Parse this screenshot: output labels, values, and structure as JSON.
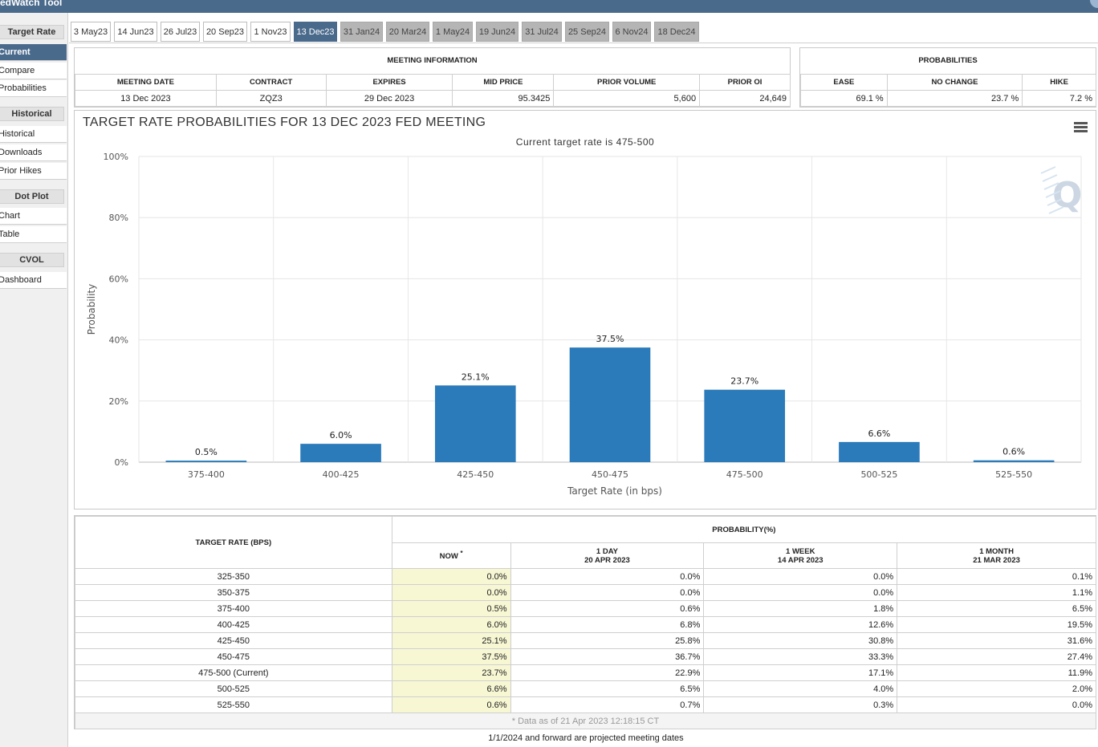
{
  "app": {
    "title": "edWatch Tool"
  },
  "sidebar": {
    "sections": [
      {
        "heading": "Target Rate",
        "items": [
          "Current",
          "Compare",
          "Probabilities"
        ]
      },
      {
        "heading": "Historical",
        "items": [
          "Historical",
          "Downloads",
          "Prior Hikes"
        ]
      },
      {
        "heading": "Dot Plot",
        "items": [
          "Chart",
          "Table"
        ]
      },
      {
        "heading": "CVOL",
        "items": [
          "Dashboard"
        ]
      }
    ],
    "active_item": "Current"
  },
  "tabs": [
    {
      "label": "3 May23",
      "state": "normal"
    },
    {
      "label": "14 Jun23",
      "state": "normal"
    },
    {
      "label": "26 Jul23",
      "state": "normal"
    },
    {
      "label": "20 Sep23",
      "state": "normal"
    },
    {
      "label": "1 Nov23",
      "state": "normal"
    },
    {
      "label": "13 Dec23",
      "state": "active"
    },
    {
      "label": "31 Jan24",
      "state": "future"
    },
    {
      "label": "20 Mar24",
      "state": "future"
    },
    {
      "label": "1 May24",
      "state": "future"
    },
    {
      "label": "19 Jun24",
      "state": "future"
    },
    {
      "label": "31 Jul24",
      "state": "future"
    },
    {
      "label": "25 Sep24",
      "state": "future"
    },
    {
      "label": "6 Nov24",
      "state": "future"
    },
    {
      "label": "18 Dec24",
      "state": "future"
    }
  ],
  "meeting_info": {
    "title": "MEETING INFORMATION",
    "headers": [
      "MEETING DATE",
      "CONTRACT",
      "EXPIRES",
      "MID PRICE",
      "PRIOR VOLUME",
      "PRIOR OI"
    ],
    "values": [
      "13 Dec 2023",
      "ZQZ3",
      "29 Dec 2023",
      "95.3425",
      "5,600",
      "24,649"
    ]
  },
  "probabilities": {
    "title": "PROBABILITIES",
    "headers": [
      "EASE",
      "NO CHANGE",
      "HIKE"
    ],
    "values": [
      "69.1 %",
      "23.7 %",
      "7.2 %"
    ]
  },
  "chart": {
    "title": "TARGET RATE PROBABILITIES FOR 13 DEC 2023 FED MEETING",
    "subtitle": "Current target rate is 475-500",
    "watermark": "Q"
  },
  "chart_data": {
    "type": "bar",
    "categories": [
      "375-400",
      "400-425",
      "425-450",
      "450-475",
      "475-500",
      "500-525",
      "525-550"
    ],
    "values": [
      0.5,
      6.0,
      25.1,
      37.5,
      23.7,
      6.6,
      0.6
    ],
    "data_labels": [
      "0.5%",
      "6.0%",
      "25.1%",
      "37.5%",
      "23.7%",
      "6.6%",
      "0.6%"
    ],
    "xlabel": "Target Rate (in bps)",
    "ylabel": "Probability",
    "ylim": [
      0,
      100
    ],
    "yticks": [
      "0%",
      "20%",
      "40%",
      "60%",
      "80%",
      "100%"
    ],
    "bar_color": "#2b7bba",
    "grid": true
  },
  "prob_table": {
    "col_target": "TARGET RATE (BPS)",
    "col_prob": "PROBABILITY(%)",
    "col_now": "NOW",
    "now_mark": "*",
    "col_1day": {
      "label": "1 DAY",
      "date": "20 APR 2023"
    },
    "col_1week": {
      "label": "1 WEEK",
      "date": "14 APR 2023"
    },
    "col_1month": {
      "label": "1 MONTH",
      "date": "21 MAR 2023"
    },
    "rows": [
      {
        "rate": "325-350",
        "now": "0.0%",
        "d1": "0.0%",
        "w1": "0.0%",
        "m1": "0.1%"
      },
      {
        "rate": "350-375",
        "now": "0.0%",
        "d1": "0.0%",
        "w1": "0.0%",
        "m1": "1.1%"
      },
      {
        "rate": "375-400",
        "now": "0.5%",
        "d1": "0.6%",
        "w1": "1.8%",
        "m1": "6.5%"
      },
      {
        "rate": "400-425",
        "now": "6.0%",
        "d1": "6.8%",
        "w1": "12.6%",
        "m1": "19.5%"
      },
      {
        "rate": "425-450",
        "now": "25.1%",
        "d1": "25.8%",
        "w1": "30.8%",
        "m1": "31.6%"
      },
      {
        "rate": "450-475",
        "now": "37.5%",
        "d1": "36.7%",
        "w1": "33.3%",
        "m1": "27.4%"
      },
      {
        "rate": "475-500 (Current)",
        "now": "23.7%",
        "d1": "22.9%",
        "w1": "17.1%",
        "m1": "11.9%"
      },
      {
        "rate": "500-525",
        "now": "6.6%",
        "d1": "6.5%",
        "w1": "4.0%",
        "m1": "2.0%"
      },
      {
        "rate": "525-550",
        "now": "0.6%",
        "d1": "0.7%",
        "w1": "0.3%",
        "m1": "0.0%"
      }
    ],
    "footnote": "* Data as of 21 Apr 2023 12:18:15 CT"
  },
  "footer": "1/1/2024 and forward are projected meeting dates"
}
